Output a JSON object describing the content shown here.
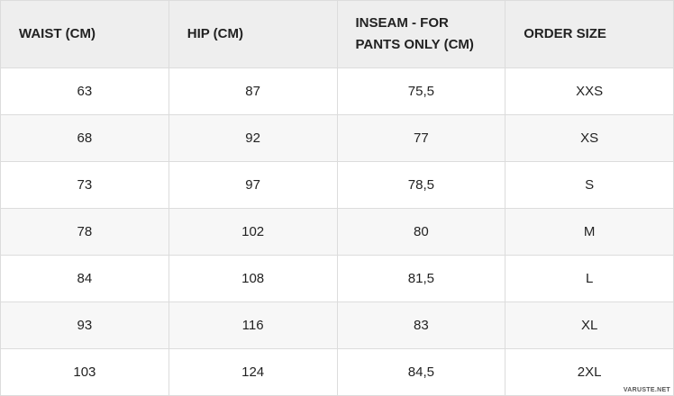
{
  "table": {
    "header": [
      "WAIST (CM)",
      "HIP (CM)",
      "INSEAM - FOR PANTS ONLY (CM)",
      "ORDER SIZE"
    ],
    "rows": [
      [
        "63",
        "87",
        "75,5",
        "XXS"
      ],
      [
        "68",
        "92",
        "77",
        "XS"
      ],
      [
        "73",
        "97",
        "78,5",
        "S"
      ],
      [
        "78",
        "102",
        "80",
        "M"
      ],
      [
        "84",
        "108",
        "81,5",
        "L"
      ],
      [
        "93",
        "116",
        "83",
        "XL"
      ],
      [
        "103",
        "124",
        "84,5",
        "2XL"
      ]
    ]
  },
  "watermark": "VARUSTE.NET"
}
